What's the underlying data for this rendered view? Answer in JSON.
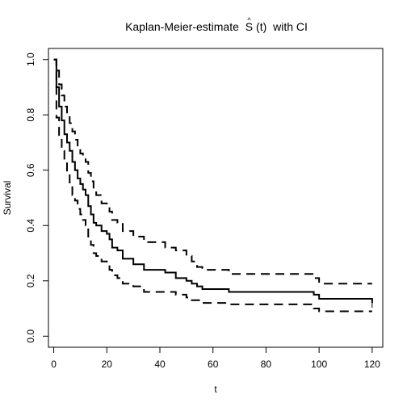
{
  "chart_data": {
    "type": "line",
    "title": {
      "before": "Kaplan-Meier-estimate",
      "symbol": "S",
      "accent": "^",
      "arg": "(t)",
      "after": "with CI"
    },
    "xlabel": "t",
    "ylabel": "Survival",
    "xlim": [
      -2,
      124
    ],
    "ylim": [
      -0.04,
      1.04
    ],
    "x_ticks": [
      0,
      20,
      40,
      60,
      80,
      100,
      120
    ],
    "x_tick_labels": [
      "0",
      "20",
      "40",
      "60",
      "80",
      "100",
      "120"
    ],
    "y_ticks": [
      0.0,
      0.2,
      0.4,
      0.6,
      0.8,
      1.0
    ],
    "y_tick_labels": [
      "0.0",
      "0.2",
      "0.4",
      "0.6",
      "0.8",
      "1.0"
    ],
    "grid": false,
    "legend": "none",
    "step": true,
    "series": [
      {
        "role": "estimate",
        "style": "solid",
        "x": [
          0,
          1,
          2,
          3,
          4,
          5,
          6,
          7,
          8,
          9,
          10,
          11,
          12,
          13,
          14,
          15,
          16,
          18,
          20,
          21,
          22,
          24,
          26,
          30,
          34,
          42,
          46,
          50,
          52,
          54,
          56,
          62,
          66,
          80,
          98,
          100,
          120
        ],
        "y": [
          1.0,
          0.9,
          0.83,
          0.78,
          0.73,
          0.7,
          0.67,
          0.63,
          0.6,
          0.57,
          0.55,
          0.53,
          0.51,
          0.47,
          0.44,
          0.41,
          0.4,
          0.38,
          0.37,
          0.35,
          0.32,
          0.31,
          0.28,
          0.26,
          0.24,
          0.23,
          0.21,
          0.2,
          0.19,
          0.18,
          0.17,
          0.17,
          0.16,
          0.16,
          0.15,
          0.135,
          0.12
        ]
      },
      {
        "role": "upper",
        "style": "dashed",
        "x": [
          0,
          1,
          2,
          3,
          4,
          5,
          6,
          7,
          8,
          9,
          10,
          11,
          12,
          13,
          14,
          15,
          16,
          18,
          20,
          21,
          22,
          24,
          26,
          30,
          34,
          42,
          46,
          50,
          52,
          54,
          56,
          62,
          66,
          80,
          98,
          100,
          120
        ],
        "y": [
          1.0,
          0.96,
          0.91,
          0.87,
          0.83,
          0.8,
          0.77,
          0.74,
          0.71,
          0.68,
          0.66,
          0.65,
          0.63,
          0.59,
          0.56,
          0.52,
          0.51,
          0.48,
          0.47,
          0.45,
          0.42,
          0.41,
          0.38,
          0.36,
          0.34,
          0.32,
          0.31,
          0.29,
          0.27,
          0.25,
          0.24,
          0.24,
          0.225,
          0.225,
          0.21,
          0.19,
          0.19
        ]
      },
      {
        "role": "lower",
        "style": "dashed",
        "x": [
          0,
          1,
          2,
          3,
          4,
          5,
          6,
          7,
          8,
          9,
          10,
          11,
          12,
          13,
          14,
          15,
          16,
          18,
          20,
          21,
          22,
          24,
          26,
          30,
          34,
          42,
          46,
          50,
          52,
          54,
          56,
          62,
          66,
          80,
          98,
          100,
          120
        ],
        "y": [
          1.0,
          0.79,
          0.72,
          0.67,
          0.63,
          0.59,
          0.55,
          0.51,
          0.49,
          0.46,
          0.44,
          0.42,
          0.4,
          0.36,
          0.33,
          0.3,
          0.29,
          0.27,
          0.26,
          0.24,
          0.22,
          0.21,
          0.19,
          0.18,
          0.16,
          0.16,
          0.15,
          0.14,
          0.13,
          0.13,
          0.12,
          0.12,
          0.115,
          0.115,
          0.1,
          0.09,
          0.09
        ]
      }
    ]
  }
}
